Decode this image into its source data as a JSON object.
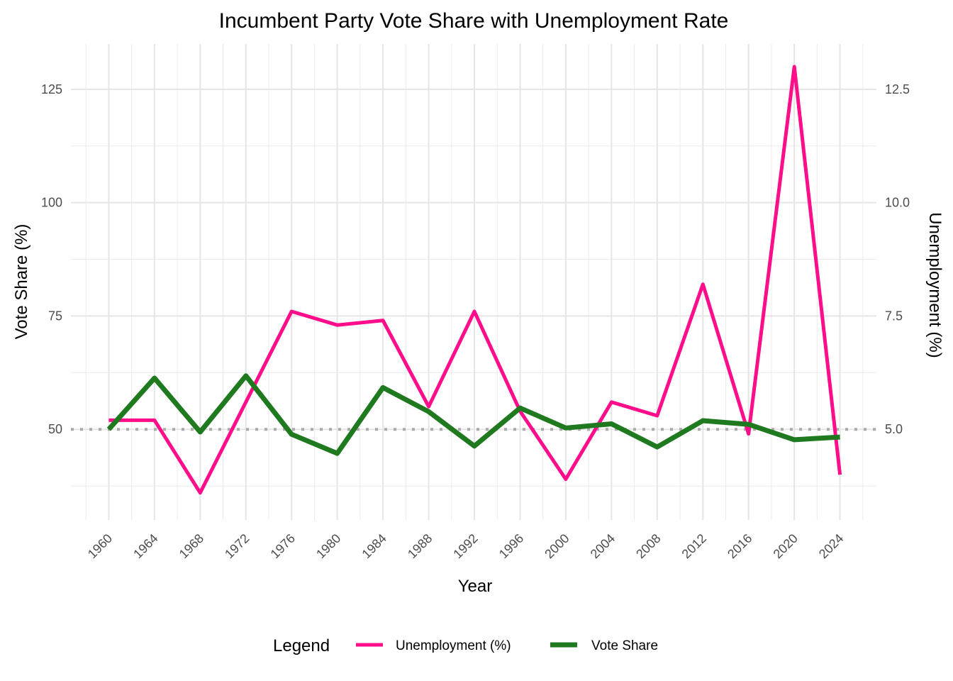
{
  "chart_data": {
    "type": "line",
    "title": "Incumbent Party Vote Share with Unemployment Rate",
    "xlabel": "Year",
    "ylabel": "Vote Share (%)",
    "y2label": "Unemployment (%)",
    "x": [
      1960,
      1964,
      1968,
      1972,
      1976,
      1980,
      1984,
      1988,
      1992,
      1996,
      2000,
      2004,
      2008,
      2012,
      2016,
      2020,
      2024
    ],
    "x_ticks": [
      "1960",
      "1964",
      "1968",
      "1972",
      "1976",
      "1980",
      "1984",
      "1988",
      "1992",
      "1996",
      "2000",
      "2004",
      "2008",
      "2012",
      "2016",
      "2020",
      "2024"
    ],
    "ylim": [
      30,
      135
    ],
    "y_ticks": [
      "125",
      "100",
      "75",
      "50"
    ],
    "y_tick_values": [
      125,
      100,
      75,
      50
    ],
    "y2lim": [
      3.0,
      13.5
    ],
    "y2_ticks": [
      "12.5",
      "10.0",
      "7.5",
      "5.0"
    ],
    "y2_tick_values": [
      12.5,
      10.0,
      7.5,
      5.0
    ],
    "reference_line": {
      "y": 50,
      "style": "dotted",
      "color": "#aaaaaa"
    },
    "series": [
      {
        "name": "Unemployment (%)",
        "axis": "right",
        "color": "#ff0d8b",
        "values": [
          5.2,
          5.2,
          3.6,
          5.6,
          7.6,
          7.3,
          7.4,
          5.5,
          7.6,
          5.4,
          3.9,
          5.6,
          5.3,
          8.2,
          4.9,
          13.0,
          4.0
        ]
      },
      {
        "name": "Vote Share",
        "axis": "left",
        "color": "#1f7a1f",
        "values": [
          50.0,
          61.3,
          49.4,
          61.8,
          48.9,
          44.7,
          59.2,
          53.9,
          46.3,
          54.7,
          50.3,
          51.2,
          46.1,
          51.9,
          51.1,
          47.7,
          48.3
        ]
      }
    ],
    "grid": true,
    "legend": {
      "title": "Legend",
      "position": "bottom"
    }
  }
}
